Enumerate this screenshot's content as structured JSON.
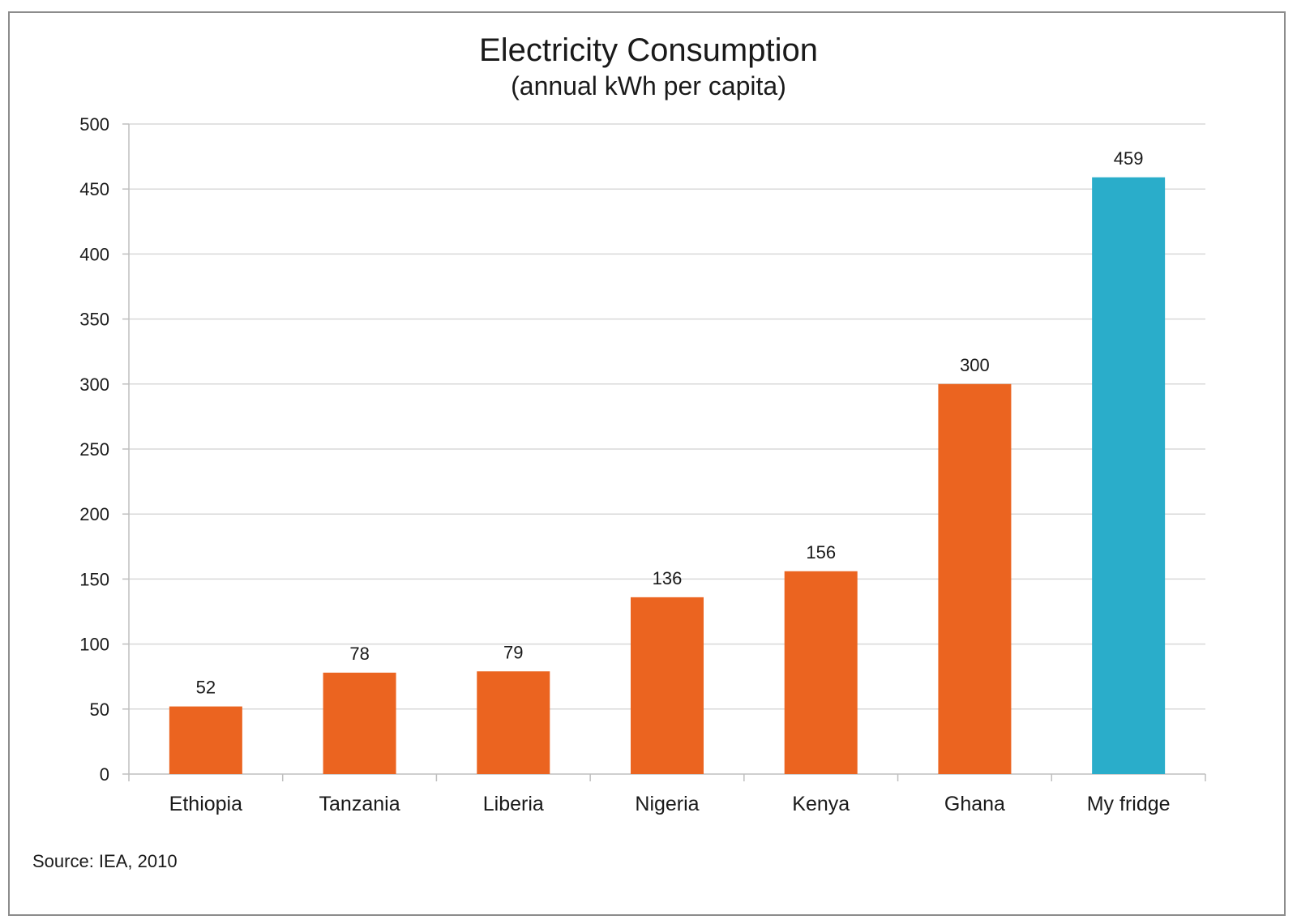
{
  "chart_data": {
    "type": "bar",
    "title": "Electricity Consumption",
    "subtitle": "(annual kWh per capita)",
    "categories": [
      "Ethiopia",
      "Tanzania",
      "Liberia",
      "Nigeria",
      "Kenya",
      "Ghana",
      "My fridge"
    ],
    "values": [
      52,
      78,
      79,
      136,
      156,
      300,
      459
    ],
    "colors": [
      "#eb6420",
      "#eb6420",
      "#eb6420",
      "#eb6420",
      "#eb6420",
      "#eb6420",
      "#2aadca"
    ],
    "ylim": [
      0,
      500
    ],
    "yticks": [
      0,
      50,
      100,
      150,
      200,
      250,
      300,
      350,
      400,
      450,
      500
    ],
    "grid": true,
    "data_labels": true,
    "xlabel": "",
    "ylabel": ""
  },
  "source": "Source: IEA, 2010",
  "colors": {
    "bar": "#eb6420",
    "highlight_bar": "#2aadca",
    "grid": "#d9d9d9",
    "axis": "#bfbfbf",
    "text": "#1a1a1a"
  }
}
